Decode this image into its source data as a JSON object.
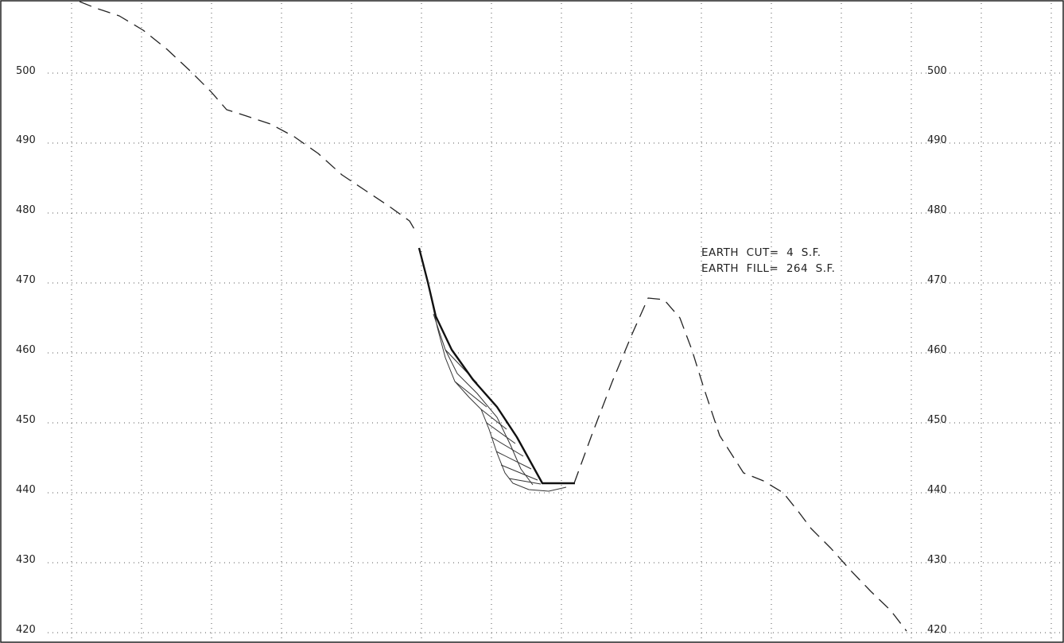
{
  "diagram": {
    "type": "cross-section profile",
    "elevation_labels": [
      "500",
      "490",
      "480",
      "470",
      "460",
      "450",
      "440",
      "430",
      "420"
    ],
    "elevation_range": [
      420,
      500
    ],
    "grid_interval": 10,
    "grid": true,
    "annotations": {
      "earth_cut": "EARTH  CUT=  4  S.F.",
      "earth_fill": "EARTH  FILL=  264  S.F."
    },
    "series": [
      {
        "style": "dashed",
        "color": "#222222"
      },
      {
        "style": "solid",
        "color": "#111111"
      }
    ],
    "colors": {
      "background": "#ffffff",
      "linework": "#222222",
      "grid": "#555555"
    }
  }
}
